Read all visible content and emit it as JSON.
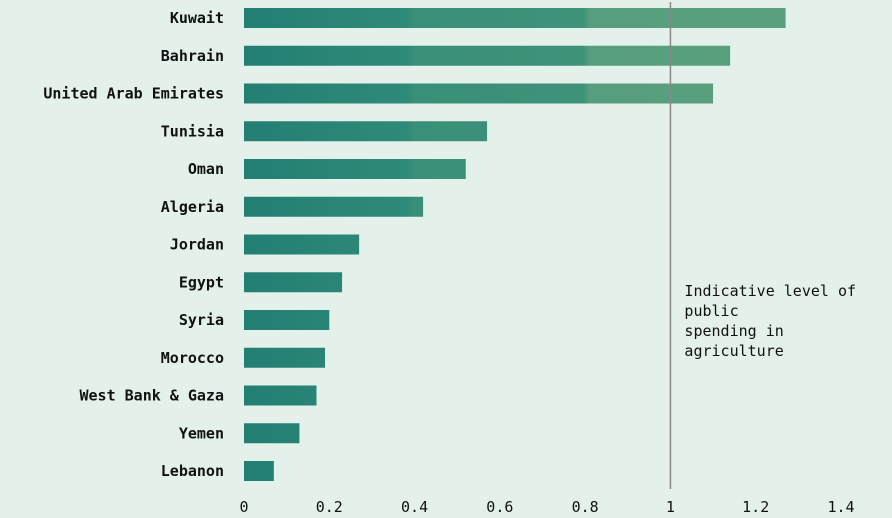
{
  "chart_data": {
    "type": "bar",
    "orientation": "horizontal",
    "categories": [
      "Kuwait",
      "Bahrain",
      "United Arab Emirates",
      "Tunisia",
      "Oman",
      "Algeria",
      "Jordan",
      "Egypt",
      "Syria",
      "Morocco",
      "West Bank & Gaza",
      "Yemen",
      "Lebanon"
    ],
    "values": [
      1.27,
      1.14,
      1.1,
      0.57,
      0.52,
      0.42,
      0.27,
      0.23,
      0.2,
      0.19,
      0.17,
      0.13,
      0.07
    ],
    "xlim": [
      0,
      1.4
    ],
    "x_ticks": [
      "0",
      "0.2",
      "0.4",
      "0.6",
      "0.8",
      "1",
      "1.2",
      "1.4"
    ],
    "x_tick_values": [
      0,
      0.2,
      0.4,
      0.6,
      0.8,
      1,
      1.2,
      1.4
    ],
    "reference_line": {
      "x": 1
    },
    "annotation": [
      "Indicative level of",
      "public",
      "spending in",
      "agriculture"
    ],
    "grid": false,
    "colors": {
      "bar_dark": "#237f73",
      "bar_light": "#5aa07e",
      "background": "#e3f1ea",
      "reference_line": "#888888"
    }
  }
}
